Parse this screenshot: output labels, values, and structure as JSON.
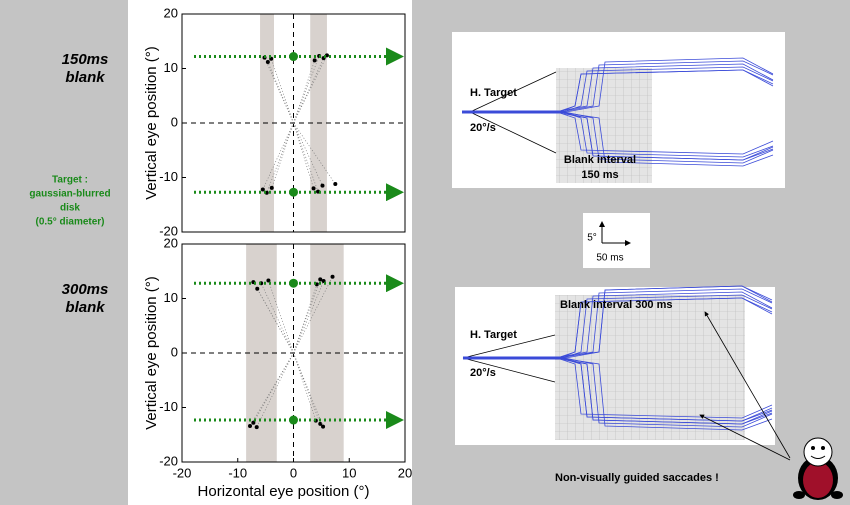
{
  "chart_data": [
    {
      "type": "scatter",
      "ylabel": "Vertical eye position (°)",
      "xlim": [
        -20,
        20
      ],
      "ylim": [
        -20,
        20
      ],
      "yticks": [
        -20,
        -10,
        0,
        10,
        20
      ],
      "bands": [
        [
          -6,
          -3.5
        ],
        [
          3,
          6
        ]
      ],
      "series": [
        {
          "color": "#000000",
          "x": [
            -5.2,
            -4.6,
            -4.0,
            3.8,
            4.6,
            5.4,
            6.0,
            -5.5,
            -4.8,
            -3.9,
            3.6,
            4.4,
            5.2,
            7.5
          ],
          "values": [
            12.0,
            11.2,
            11.8,
            11.5,
            12.3,
            11.9,
            12.4,
            -12.2,
            -12.8,
            -11.9,
            -12.0,
            -12.6,
            -11.5,
            -11.2
          ]
        },
        {
          "color": "#1a8a1a",
          "x": [
            0,
            0
          ],
          "values": [
            12.2,
            -12.7
          ]
        }
      ]
    },
    {
      "type": "scatter",
      "ylabel": "Vertical eye position (°)",
      "xlabel": "Horizontal eye position (°)",
      "xlim": [
        -20,
        20
      ],
      "ylim": [
        -20,
        20
      ],
      "xticks": [
        -20,
        -10,
        0,
        10,
        20
      ],
      "yticks": [
        -20,
        -10,
        0,
        10,
        20
      ],
      "bands": [
        [
          -8.5,
          -3
        ],
        [
          3,
          9
        ]
      ],
      "series": [
        {
          "color": "#000000",
          "x": [
            -7.2,
            -6.5,
            -5.8,
            -4.5,
            4.2,
            4.8,
            5.4,
            7.0,
            -7.8,
            -7.2,
            -6.6,
            4.0,
            4.8,
            5.3
          ],
          "values": [
            13.0,
            11.8,
            12.8,
            13.3,
            12.6,
            13.5,
            13.2,
            14.0,
            -13.4,
            -12.8,
            -13.6,
            -12.4,
            -13.0,
            -13.5
          ]
        },
        {
          "color": "#1a8a1a",
          "x": [
            0,
            0
          ],
          "values": [
            12.8,
            -12.3
          ]
        }
      ]
    }
  ],
  "slide": {
    "top_condition": [
      "150ms",
      "blank"
    ],
    "target_note": [
      "Target :",
      "gaussian-blurred",
      "disk",
      "(0.5° diameter)"
    ],
    "bottom_condition": [
      "300ms",
      "blank"
    ],
    "top_panel": {
      "target_label": "H. Target",
      "speed_label": "20°/s",
      "blank_label": [
        "Blank interval",
        "150 ms"
      ]
    },
    "scale_bar": {
      "y_label": "5°",
      "x_label": "50 ms"
    },
    "bottom_panel": {
      "blank_label": "Blank interval 300 ms",
      "target_label": "H. Target",
      "speed_label": "20°/s"
    },
    "caption": "Non-visually guided saccades !"
  }
}
